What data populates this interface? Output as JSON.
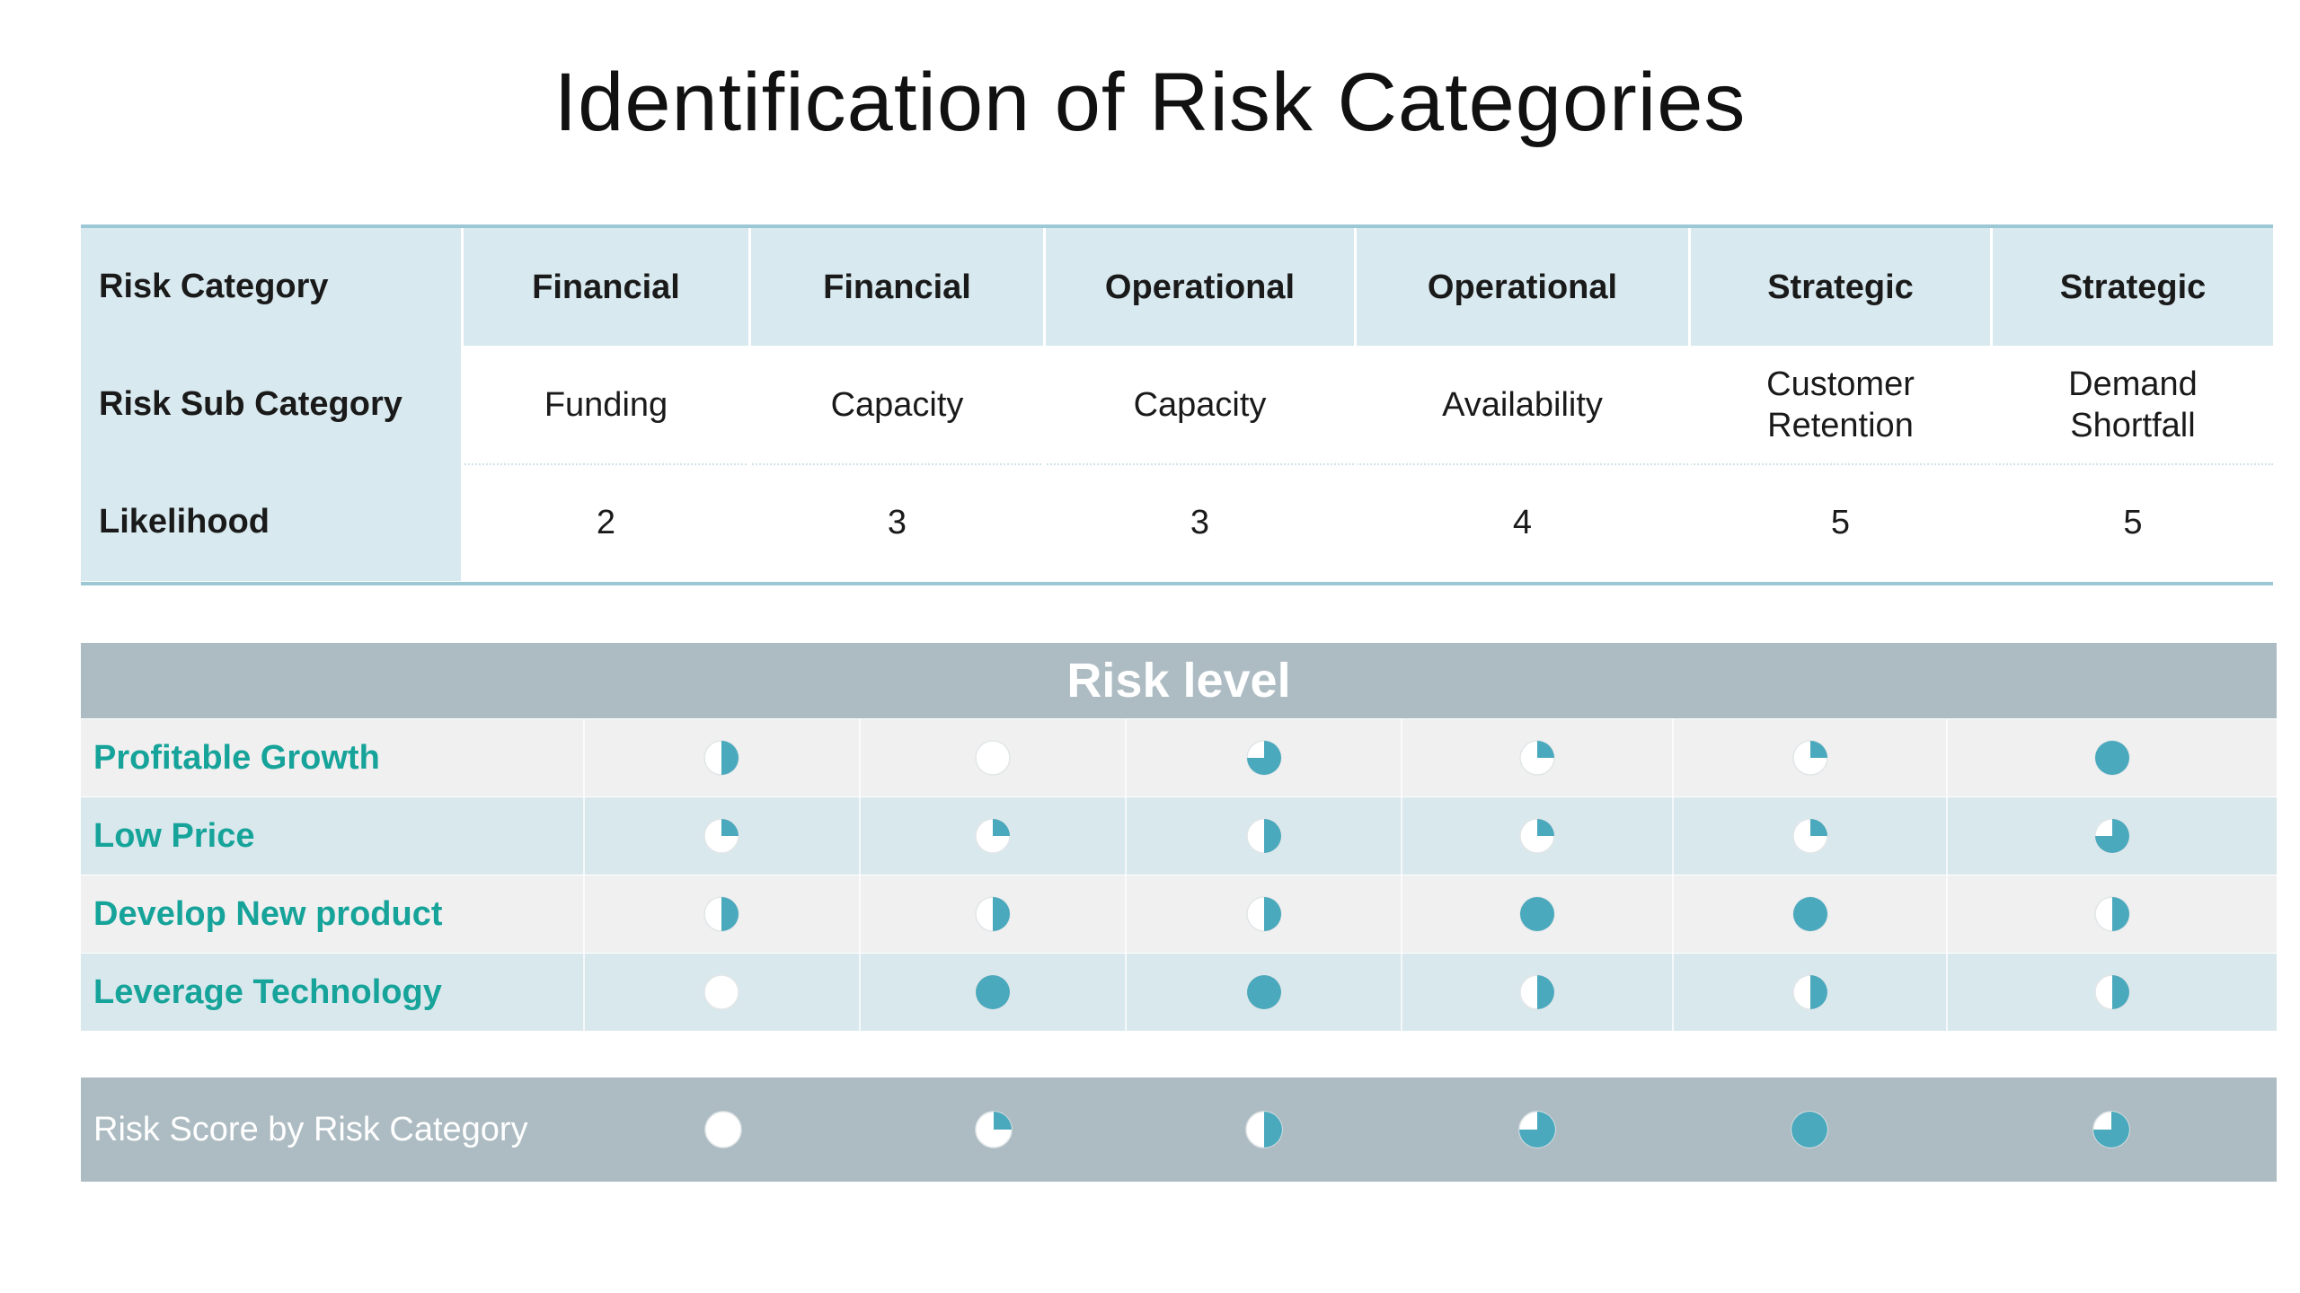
{
  "title": "Identification of Risk Categories",
  "category_table": {
    "row_labels": [
      "Risk Category",
      "Risk Sub Category",
      "Likelihood"
    ],
    "columns": [
      {
        "category": "Financial",
        "sub_category": "Funding",
        "likelihood": "2"
      },
      {
        "category": "Financial",
        "sub_category": "Capacity",
        "likelihood": "3"
      },
      {
        "category": "Operational",
        "sub_category": "Capacity",
        "likelihood": "3"
      },
      {
        "category": "Operational",
        "sub_category": "Availability",
        "likelihood": "4"
      },
      {
        "category": "Strategic",
        "sub_category": "Customer\nRetention",
        "likelihood": "5"
      },
      {
        "category": "Strategic",
        "sub_category": "Demand\nShortfall",
        "likelihood": "5"
      }
    ]
  },
  "risk_level": {
    "header": "Risk level",
    "rows": [
      {
        "label": "Profitable Growth",
        "levels": [
          0.5,
          0,
          0.75,
          0.25,
          0.25,
          1
        ]
      },
      {
        "label": "Low Price",
        "levels": [
          0.25,
          0.25,
          0.5,
          0.25,
          0.25,
          0.75
        ]
      },
      {
        "label": "Develop New product",
        "levels": [
          0.5,
          0.5,
          0.5,
          1,
          1,
          0.5
        ]
      },
      {
        "label": "Leverage Technology",
        "levels": [
          0,
          1,
          1,
          0.5,
          0.5,
          0.5
        ]
      }
    ],
    "score_row": {
      "label": "Risk Score by Risk Category",
      "levels": [
        0,
        0.25,
        0.5,
        0.75,
        1,
        0.75
      ]
    }
  },
  "colors": {
    "accent": "#4ba9bd",
    "label_green": "#16a39a",
    "header_gray": "#adbcc3",
    "table_blue": "#d8e9ef"
  }
}
